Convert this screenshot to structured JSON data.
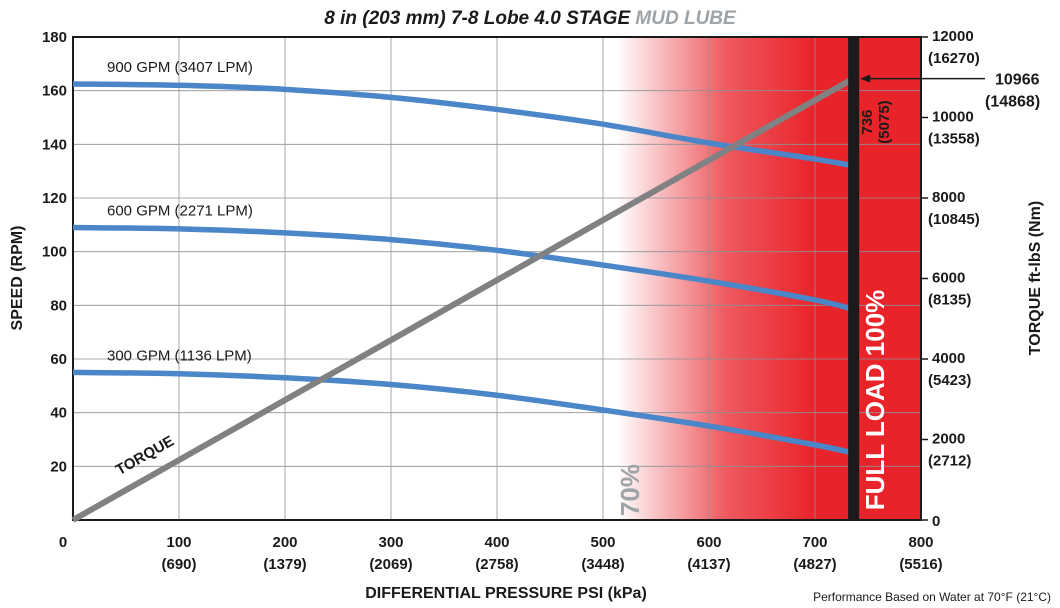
{
  "chart_data": {
    "type": "line",
    "title_main": "8 in (203 mm) 7-8 Lobe 4.0 STAGE",
    "title_accent": "MUD LUBE",
    "xlabel": "DIFFERENTIAL PRESSURE  PSI (kPa)",
    "ylabel_left": "SPEED (RPM)",
    "ylabel_right": "TORQUE  ft-lbS (Nm)",
    "footnote": "Performance Based on Water at 70°F (21°C)",
    "xlim": [
      0,
      800
    ],
    "ylim_left": [
      0,
      180
    ],
    "ylim_right": [
      0,
      12000
    ],
    "x_ticks": [
      {
        "value": 0,
        "psi": "0",
        "kpa": ""
      },
      {
        "value": 100,
        "psi": "100",
        "kpa": "(690)"
      },
      {
        "value": 200,
        "psi": "200",
        "kpa": "(1379)"
      },
      {
        "value": 300,
        "psi": "300",
        "kpa": "(2069)"
      },
      {
        "value": 400,
        "psi": "400",
        "kpa": "(2758)"
      },
      {
        "value": 500,
        "psi": "500",
        "kpa": "(3448)"
      },
      {
        "value": 600,
        "psi": "600",
        "kpa": "(4137)"
      },
      {
        "value": 700,
        "psi": "700",
        "kpa": "(4827)"
      },
      {
        "value": 800,
        "psi": "800",
        "kpa": "(5516)"
      }
    ],
    "y_left_ticks": [
      {
        "value": 20,
        "label": "20"
      },
      {
        "value": 40,
        "label": "40"
      },
      {
        "value": 60,
        "label": "60"
      },
      {
        "value": 80,
        "label": "80"
      },
      {
        "value": 100,
        "label": "100"
      },
      {
        "value": 120,
        "label": "120"
      },
      {
        "value": 140,
        "label": "140"
      },
      {
        "value": 160,
        "label": "160"
      },
      {
        "value": 180,
        "label": "180"
      }
    ],
    "y_right_ticks": [
      {
        "value": 0,
        "ftlb": "0",
        "nm": ""
      },
      {
        "value": 2000,
        "ftlb": "2000",
        "nm": "(2712)"
      },
      {
        "value": 4000,
        "ftlb": "4000",
        "nm": "(5423)"
      },
      {
        "value": 6000,
        "ftlb": "6000",
        "nm": "(8135)"
      },
      {
        "value": 8000,
        "ftlb": "8000",
        "nm": "(10845)"
      },
      {
        "value": 10000,
        "ftlb": "10000",
        "nm": "(13558)"
      },
      {
        "value": 12000,
        "ftlb": "12000",
        "nm": "(16270)"
      }
    ],
    "grid": true,
    "series": [
      {
        "name": "900 GPM (3407 LPM)",
        "axis": "left",
        "color": "#4a86c8",
        "x": [
          0,
          100,
          200,
          300,
          400,
          500,
          600,
          700,
          736
        ],
        "y": [
          162.5,
          162,
          160.5,
          157.5,
          153,
          147.5,
          140.5,
          134.5,
          132
        ]
      },
      {
        "name": "600 GPM (2271 LPM)",
        "axis": "left",
        "color": "#4a86c8",
        "x": [
          0,
          100,
          200,
          300,
          400,
          500,
          600,
          700,
          736
        ],
        "y": [
          109,
          108.5,
          107,
          104.5,
          100.5,
          95,
          89,
          82,
          78.5
        ]
      },
      {
        "name": "300 GPM (1136 LPM)",
        "axis": "left",
        "color": "#4a86c8",
        "x": [
          0,
          100,
          200,
          300,
          400,
          500,
          600,
          700,
          736
        ],
        "y": [
          55,
          54.5,
          53,
          50.5,
          46.5,
          41,
          35,
          28,
          25
        ]
      },
      {
        "name": "TORQUE",
        "axis": "right",
        "color": "#7f8183",
        "x": [
          0,
          736
        ],
        "y": [
          0,
          10966
        ]
      }
    ],
    "annotations": {
      "full_load_label": "FULL LOAD 100%",
      "full_load_psi": 736,
      "full_load_psi_label": "736",
      "full_load_kpa_label": "(5075)",
      "max_torque": 10966,
      "max_torque_ftlb_label": "10966",
      "max_torque_nm_label": "(14868)",
      "seventy_label": "70%",
      "seventy_psi": 515
    },
    "colors": {
      "speed_curve": "#4a86c8",
      "torque_line": "#7f8183",
      "zone_red": "#e8232a",
      "full_load_bar": "#1a1a1a",
      "accent_title": "#9ea3a8"
    }
  }
}
